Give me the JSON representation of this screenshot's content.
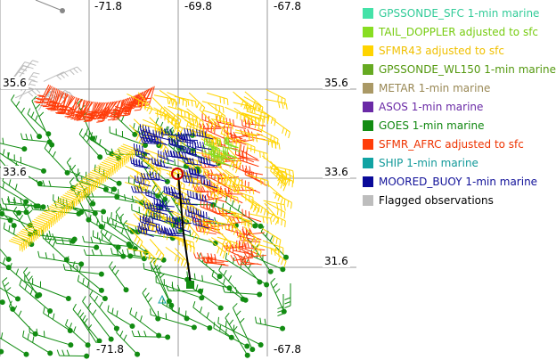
{
  "map": {
    "axis_labels": {
      "lon_top": [
        "-71.8",
        "-69.8",
        "-67.8"
      ],
      "lon_bottom": [
        "-71.8",
        "-67.8"
      ],
      "lat": [
        "35.6",
        "33.6",
        "31.6"
      ]
    },
    "grid": true
  },
  "legend": {
    "items": [
      {
        "label": "GPSSONDE_SFC 1-min marine",
        "color": "#44e2a8",
        "text_color": "#33cc99"
      },
      {
        "label": "TAIL_DOPPLER adjusted to sfc",
        "color": "#88dd22",
        "text_color": "#77cc11"
      },
      {
        "label": "SFMR43 adjusted to sfc",
        "color": "#ffd400",
        "text_color": "#f0c000"
      },
      {
        "label": "GPSSONDE_WL150 1-min marine",
        "color": "#66aa22",
        "text_color": "#559911"
      },
      {
        "label": "METAR 1-min marine",
        "color": "#aa9966",
        "text_color": "#998855"
      },
      {
        "label": "ASOS 1-min marine",
        "color": "#6a2aa6",
        "text_color": "#6a2aa6"
      },
      {
        "label": "GOES 1-min marine",
        "color": "#128c12",
        "text_color": "#118811"
      },
      {
        "label": "SFMR_AFRC adjusted to sfc",
        "color": "#ff3d0a",
        "text_color": "#ee3300"
      },
      {
        "label": "SHIP 1-min marine",
        "color": "#11a3a3",
        "text_color": "#119999"
      },
      {
        "label": "MOORED_BUOY 1-min marine",
        "color": "#0a0a99",
        "text_color": "#111199"
      },
      {
        "label": "Flagged observations",
        "color": "#bdbdbd",
        "text_color": "#000000"
      }
    ]
  }
}
